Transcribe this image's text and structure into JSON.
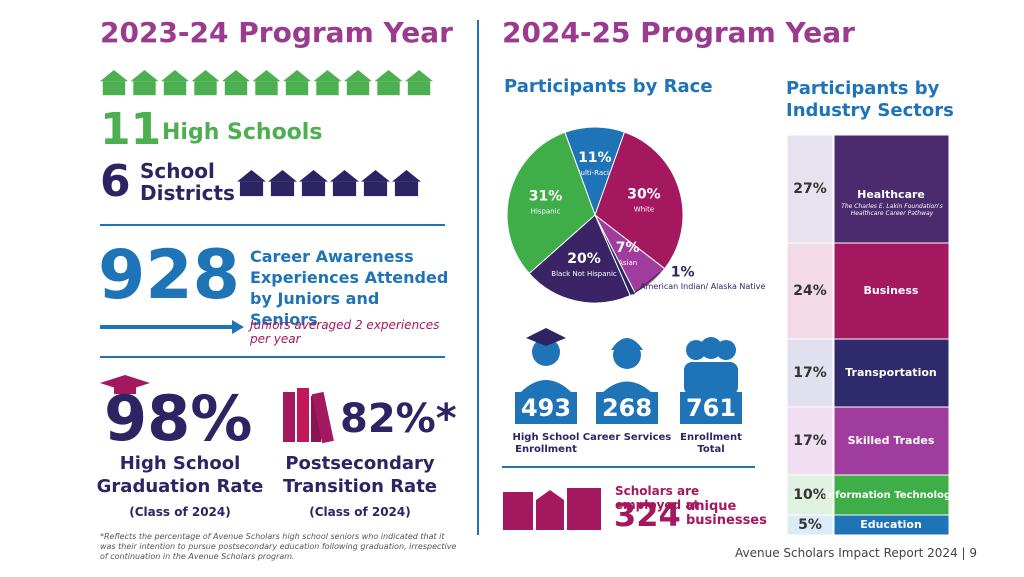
{
  "left": {
    "title": "2023-24 Program Year",
    "high_schools_number": 11,
    "high_schools_label": "High Schools",
    "districts_number": 6,
    "districts_label": "School Districts",
    "career_number": 928,
    "career_label": "Career Awareness Experiences Attended by Juniors and Seniors",
    "career_note": "Juniors averaged 2 experiences per year",
    "graduation": {
      "value": "98%",
      "label": "High School Graduation Rate",
      "class": "(Class of 2024)"
    },
    "transition": {
      "value": "82%*",
      "label": "Postsecondary Transition Rate",
      "class": "(Class of 2024)"
    },
    "footnote": "*Reflects the percentage of Avenue Scholars high school seniors who indicated that it was their intention to pursue postsecondary education following graduation, irrespective of continuation in the Avenue Scholars program."
  },
  "right": {
    "title": "2024-25 Program Year",
    "race_chart": {
      "type": "pie",
      "title": "Participants by Race",
      "categories": [
        "Multi-Racial",
        "White",
        "Asian",
        "American Indian/ Alaska Native",
        "Black Not Hispanic",
        "Hispanic"
      ],
      "values": [
        11,
        30,
        7,
        1,
        20,
        31
      ],
      "value_labels": [
        "11%",
        "30%",
        "7%",
        "1%",
        "20%",
        "31%"
      ],
      "colors": [
        "#1f73b7",
        "#a3185f",
        "#a03c9e",
        "#2d2563",
        "#3b2466",
        "#3fae49"
      ]
    },
    "enrollment": [
      {
        "value": 493,
        "label": "High School Enrollment"
      },
      {
        "value": 268,
        "label": "Career Services"
      },
      {
        "value": 761,
        "label": "Enrollment Total"
      }
    ],
    "employment": {
      "lead": "Scholars are employed at",
      "number": 324,
      "tail": "unique businesses"
    },
    "sector_chart": {
      "type": "stacked-column",
      "title": "Participants by Industry Sectors",
      "categories": [
        "Healthcare",
        "Business",
        "Transportation",
        "Skilled Trades",
        "Information Technology",
        "Education"
      ],
      "values": [
        27,
        24,
        17,
        17,
        10,
        5
      ],
      "value_labels": [
        "27%",
        "24%",
        "17%",
        "17%",
        "10%",
        "5%"
      ],
      "note": "The Charles E. Lakin Foundation's Healthcare Career Pathway",
      "colors": [
        "#4b2a6e",
        "#a3185f",
        "#2f2a6b",
        "#a03c9e",
        "#3fae49",
        "#1f73b7"
      ],
      "light_colors": [
        "#e6e3ee",
        "#f2dbe6",
        "#e1e0ee",
        "#f0dff0",
        "#e0f1e1",
        "#dcebf6"
      ]
    }
  },
  "footer": "Avenue Scholars Impact Report 2024 | 9"
}
